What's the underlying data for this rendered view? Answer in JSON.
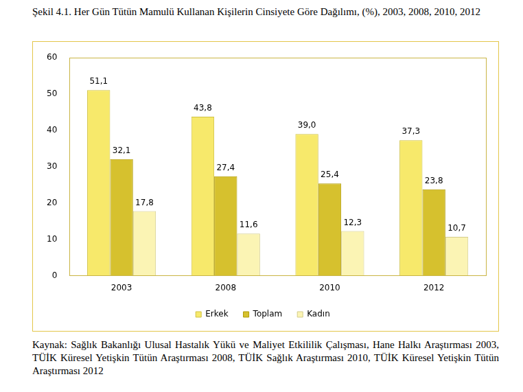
{
  "chart_data": {
    "type": "bar",
    "title": "Şekil 4.1. Her Gün Tütün Mamulü Kullanan Kişilerin Cinsiyete Göre Dağılımı, (%), 2003, 2008, 2010, 2012",
    "source": "Kaynak: Sağlık Bakanlığı Ulusal Hastalık Yükü ve Maliyet Etkililik Çalışması, Hane Halkı Araştırması 2003, TÜİK Küresel Yetişkin Tütün Araştırması 2008, TÜİK Sağlık Araştırması 2010, TÜİK Küresel Yetişkin Tütün Araştırması 2012",
    "categories": [
      "2003",
      "2008",
      "2010",
      "2012"
    ],
    "series": [
      {
        "name": "Erkek",
        "color": "#f7e96b",
        "values": [
          51.1,
          43.8,
          39.0,
          37.3
        ],
        "value_labels": [
          "51,1",
          "43,8",
          "39,0",
          "37,3"
        ]
      },
      {
        "name": "Toplam",
        "color": "#d6c12e",
        "values": [
          32.1,
          27.4,
          25.4,
          23.8
        ],
        "value_labels": [
          "32,1",
          "27,4",
          "25,4",
          "23,8"
        ]
      },
      {
        "name": "Kadın",
        "color": "#fbf4b4",
        "values": [
          17.8,
          11.6,
          12.3,
          10.7
        ],
        "value_labels": [
          "17,8",
          "11,6",
          "12,3",
          "10,7"
        ]
      }
    ],
    "ylim": [
      0,
      60
    ],
    "yticks": [
      0,
      10,
      20,
      30,
      40,
      50,
      60
    ],
    "grid": false,
    "legend": "bottom",
    "data_labels": true
  }
}
